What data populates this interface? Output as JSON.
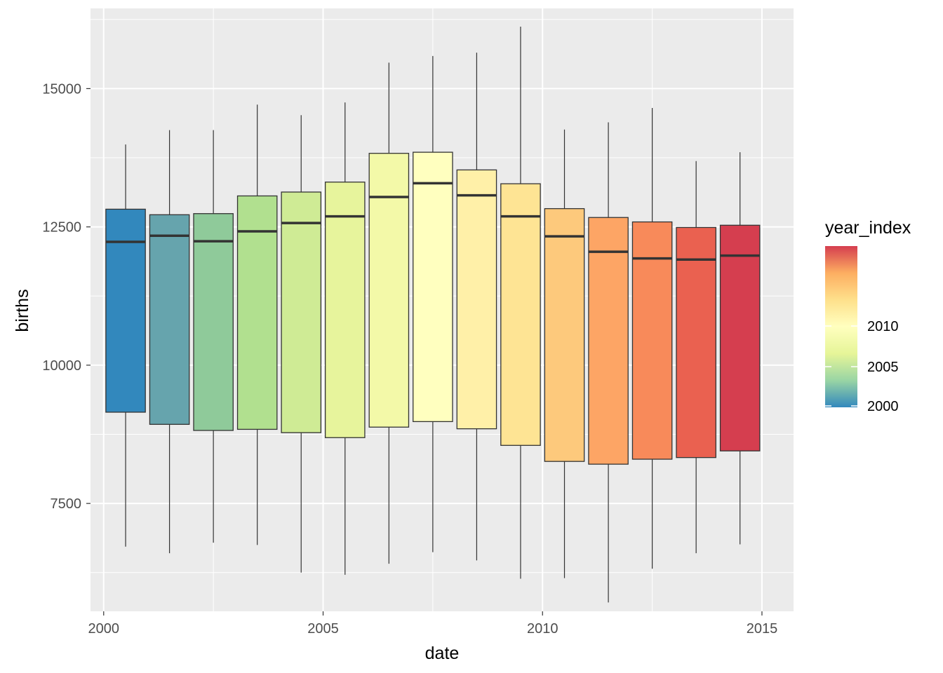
{
  "chart_data": {
    "type": "boxplot",
    "xlabel": "date",
    "ylabel": "births",
    "x_ticks": [
      2000,
      2005,
      2010,
      2015
    ],
    "y_ticks": [
      7500,
      10000,
      12500,
      15000
    ],
    "xlim": [
      1999.7,
      2015.72
    ],
    "ylim": [
      5550,
      16450
    ],
    "grid": true,
    "legend": {
      "title": "year_index",
      "position": "right",
      "range": [
        2000,
        2014
      ],
      "ticks": [
        2000,
        2005,
        2010
      ]
    },
    "boxes": [
      {
        "year": 2000,
        "x": 2000.5,
        "lower": 6720,
        "q1": 9150,
        "median": 12230,
        "q3": 12820,
        "upper": 13990,
        "color": "#3288bd"
      },
      {
        "year": 2001,
        "x": 2001.5,
        "lower": 6600,
        "q1": 8930,
        "median": 12340,
        "q3": 12720,
        "upper": 14250,
        "color": "#66a4ad"
      },
      {
        "year": 2002,
        "x": 2002.5,
        "lower": 6790,
        "q1": 8820,
        "median": 12240,
        "q3": 12740,
        "upper": 14250,
        "color": "#8fca9a"
      },
      {
        "year": 2003,
        "x": 2003.5,
        "lower": 6750,
        "q1": 8840,
        "median": 12420,
        "q3": 13060,
        "upper": 14710,
        "color": "#b1e08f"
      },
      {
        "year": 2004,
        "x": 2004.5,
        "lower": 6250,
        "q1": 8780,
        "median": 12570,
        "q3": 13130,
        "upper": 14520,
        "color": "#cfeb95"
      },
      {
        "year": 2005,
        "x": 2005.5,
        "lower": 6210,
        "q1": 8690,
        "median": 12690,
        "q3": 13310,
        "upper": 14750,
        "color": "#e7f49c"
      },
      {
        "year": 2006,
        "x": 2006.5,
        "lower": 6410,
        "q1": 8880,
        "median": 13040,
        "q3": 13830,
        "upper": 15470,
        "color": "#f3f9a8"
      },
      {
        "year": 2007,
        "x": 2007.5,
        "lower": 6620,
        "q1": 8980,
        "median": 13290,
        "q3": 13850,
        "upper": 15590,
        "color": "#ffffbf"
      },
      {
        "year": 2008,
        "x": 2008.5,
        "lower": 6470,
        "q1": 8850,
        "median": 13070,
        "q3": 13530,
        "upper": 15650,
        "color": "#fff0a8"
      },
      {
        "year": 2009,
        "x": 2009.5,
        "lower": 6140,
        "q1": 8550,
        "median": 12690,
        "q3": 13280,
        "upper": 16120,
        "color": "#fee494"
      },
      {
        "year": 2010,
        "x": 2010.5,
        "lower": 6150,
        "q1": 8260,
        "median": 12330,
        "q3": 12830,
        "upper": 14260,
        "color": "#fdc97c"
      },
      {
        "year": 2011,
        "x": 2011.5,
        "lower": 5710,
        "q1": 8210,
        "median": 12050,
        "q3": 12670,
        "upper": 14390,
        "color": "#fda565"
      },
      {
        "year": 2012,
        "x": 2012.5,
        "lower": 6320,
        "q1": 8300,
        "median": 11930,
        "q3": 12590,
        "upper": 14650,
        "color": "#f88a5a"
      },
      {
        "year": 2013,
        "x": 2013.5,
        "lower": 6600,
        "q1": 8330,
        "median": 11910,
        "q3": 12490,
        "upper": 13690,
        "color": "#ea6150"
      },
      {
        "year": 2014,
        "x": 2014.5,
        "lower": 6760,
        "q1": 8450,
        "median": 11980,
        "q3": 12530,
        "upper": 13850,
        "color": "#d53e4f"
      }
    ],
    "gradient": [
      "#3288bd",
      "#99d5a4",
      "#e6f598",
      "#ffffbf",
      "#fee08b",
      "#fdae61",
      "#d53e4f"
    ]
  }
}
